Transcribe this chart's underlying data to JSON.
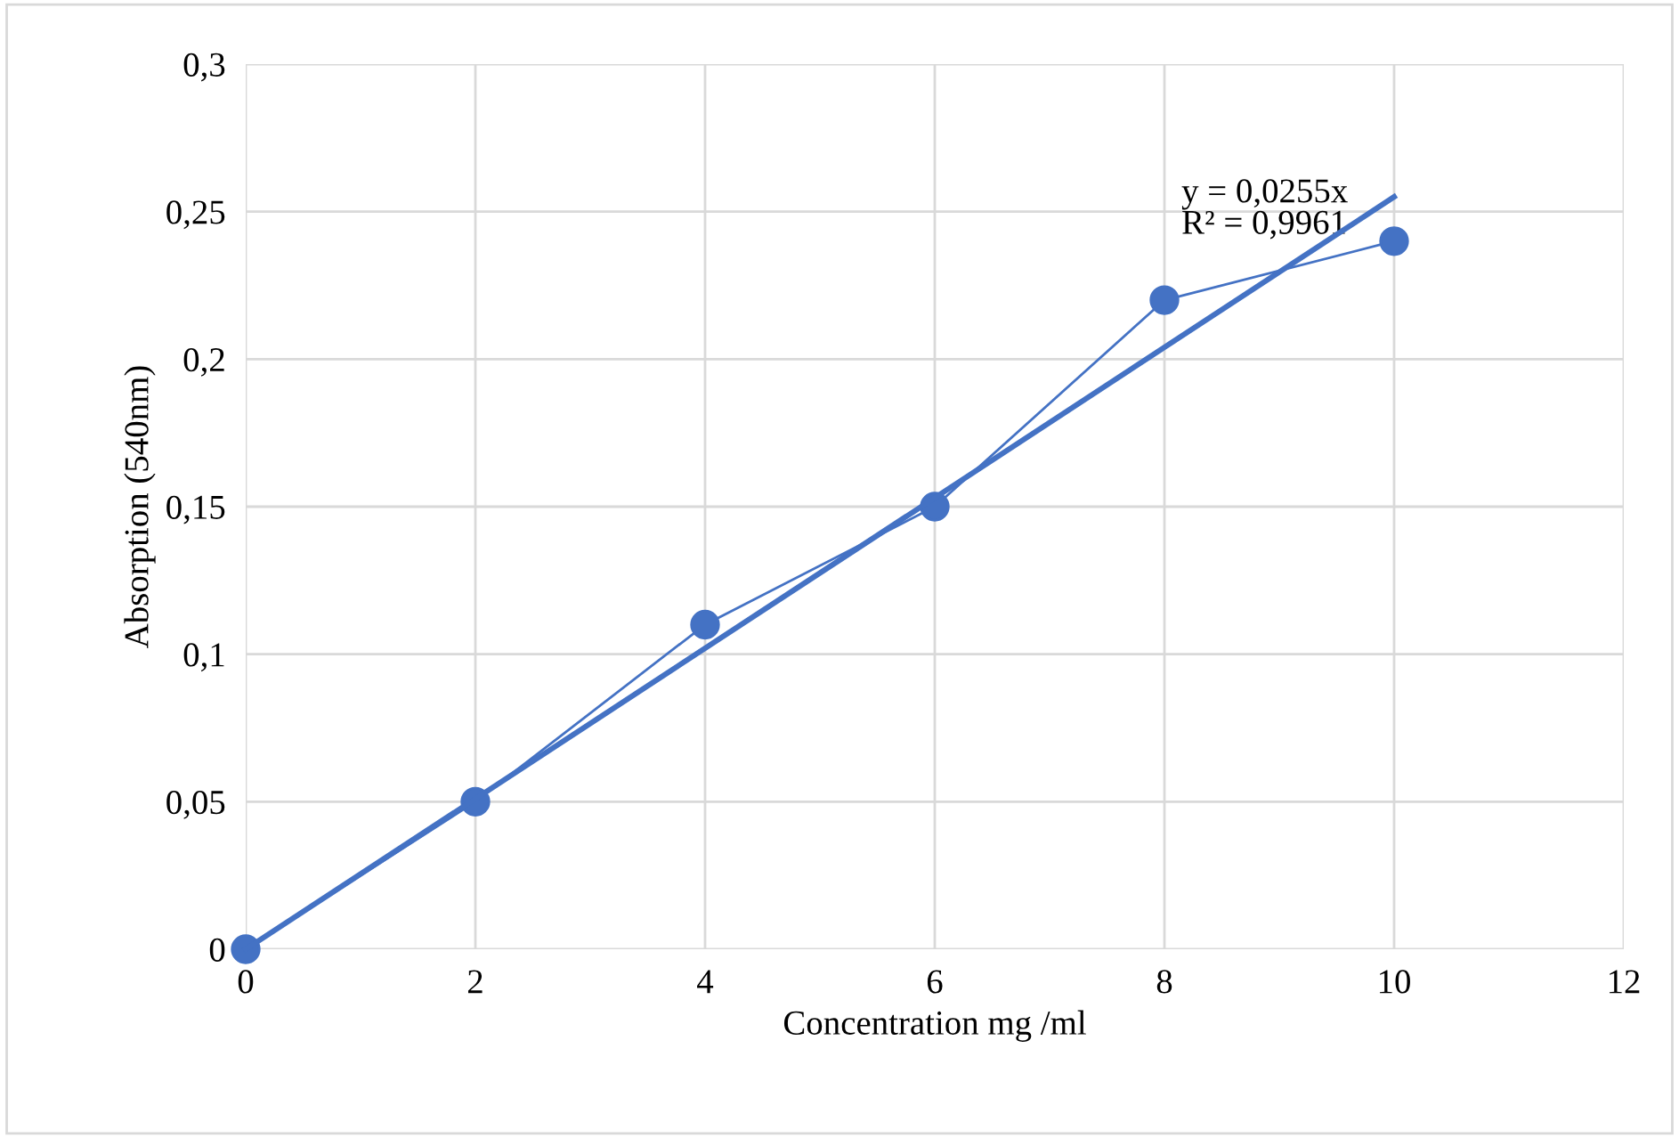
{
  "chart_data": {
    "type": "line",
    "xlabel": "Concentration mg /ml",
    "ylabel": "Absorption (540nm)",
    "series": [
      {
        "color": "#4472c4",
        "x": [
          0,
          2,
          4,
          6,
          8,
          10
        ],
        "values": [
          0,
          0.05,
          0.11,
          0.15,
          0.22,
          0.24
        ],
        "marker": "circle",
        "line_style": "solid"
      },
      {
        "color": "#4472c4",
        "x": [
          0,
          10
        ],
        "values": [
          0,
          0.255
        ],
        "marker": "none",
        "line_style": "solid"
      }
    ],
    "xlim": [
      0,
      12
    ],
    "xticks": [
      0,
      2,
      4,
      6,
      8,
      10,
      12
    ],
    "ylim": [
      0,
      0.3
    ],
    "yticks": [
      0,
      {
        "value": 0.05,
        "label": "0,05"
      },
      {
        "value": 0.1,
        "label": "0,1"
      },
      {
        "value": 0.15,
        "label": "0,15"
      },
      {
        "value": 0.2,
        "label": "0,2"
      },
      {
        "value": 0.25,
        "label": "0,25"
      },
      {
        "value": 0.3,
        "label": "0,3"
      }
    ],
    "grid": true,
    "annotations": [
      "y = 0,0255x\nR² = 0,9961"
    ]
  }
}
